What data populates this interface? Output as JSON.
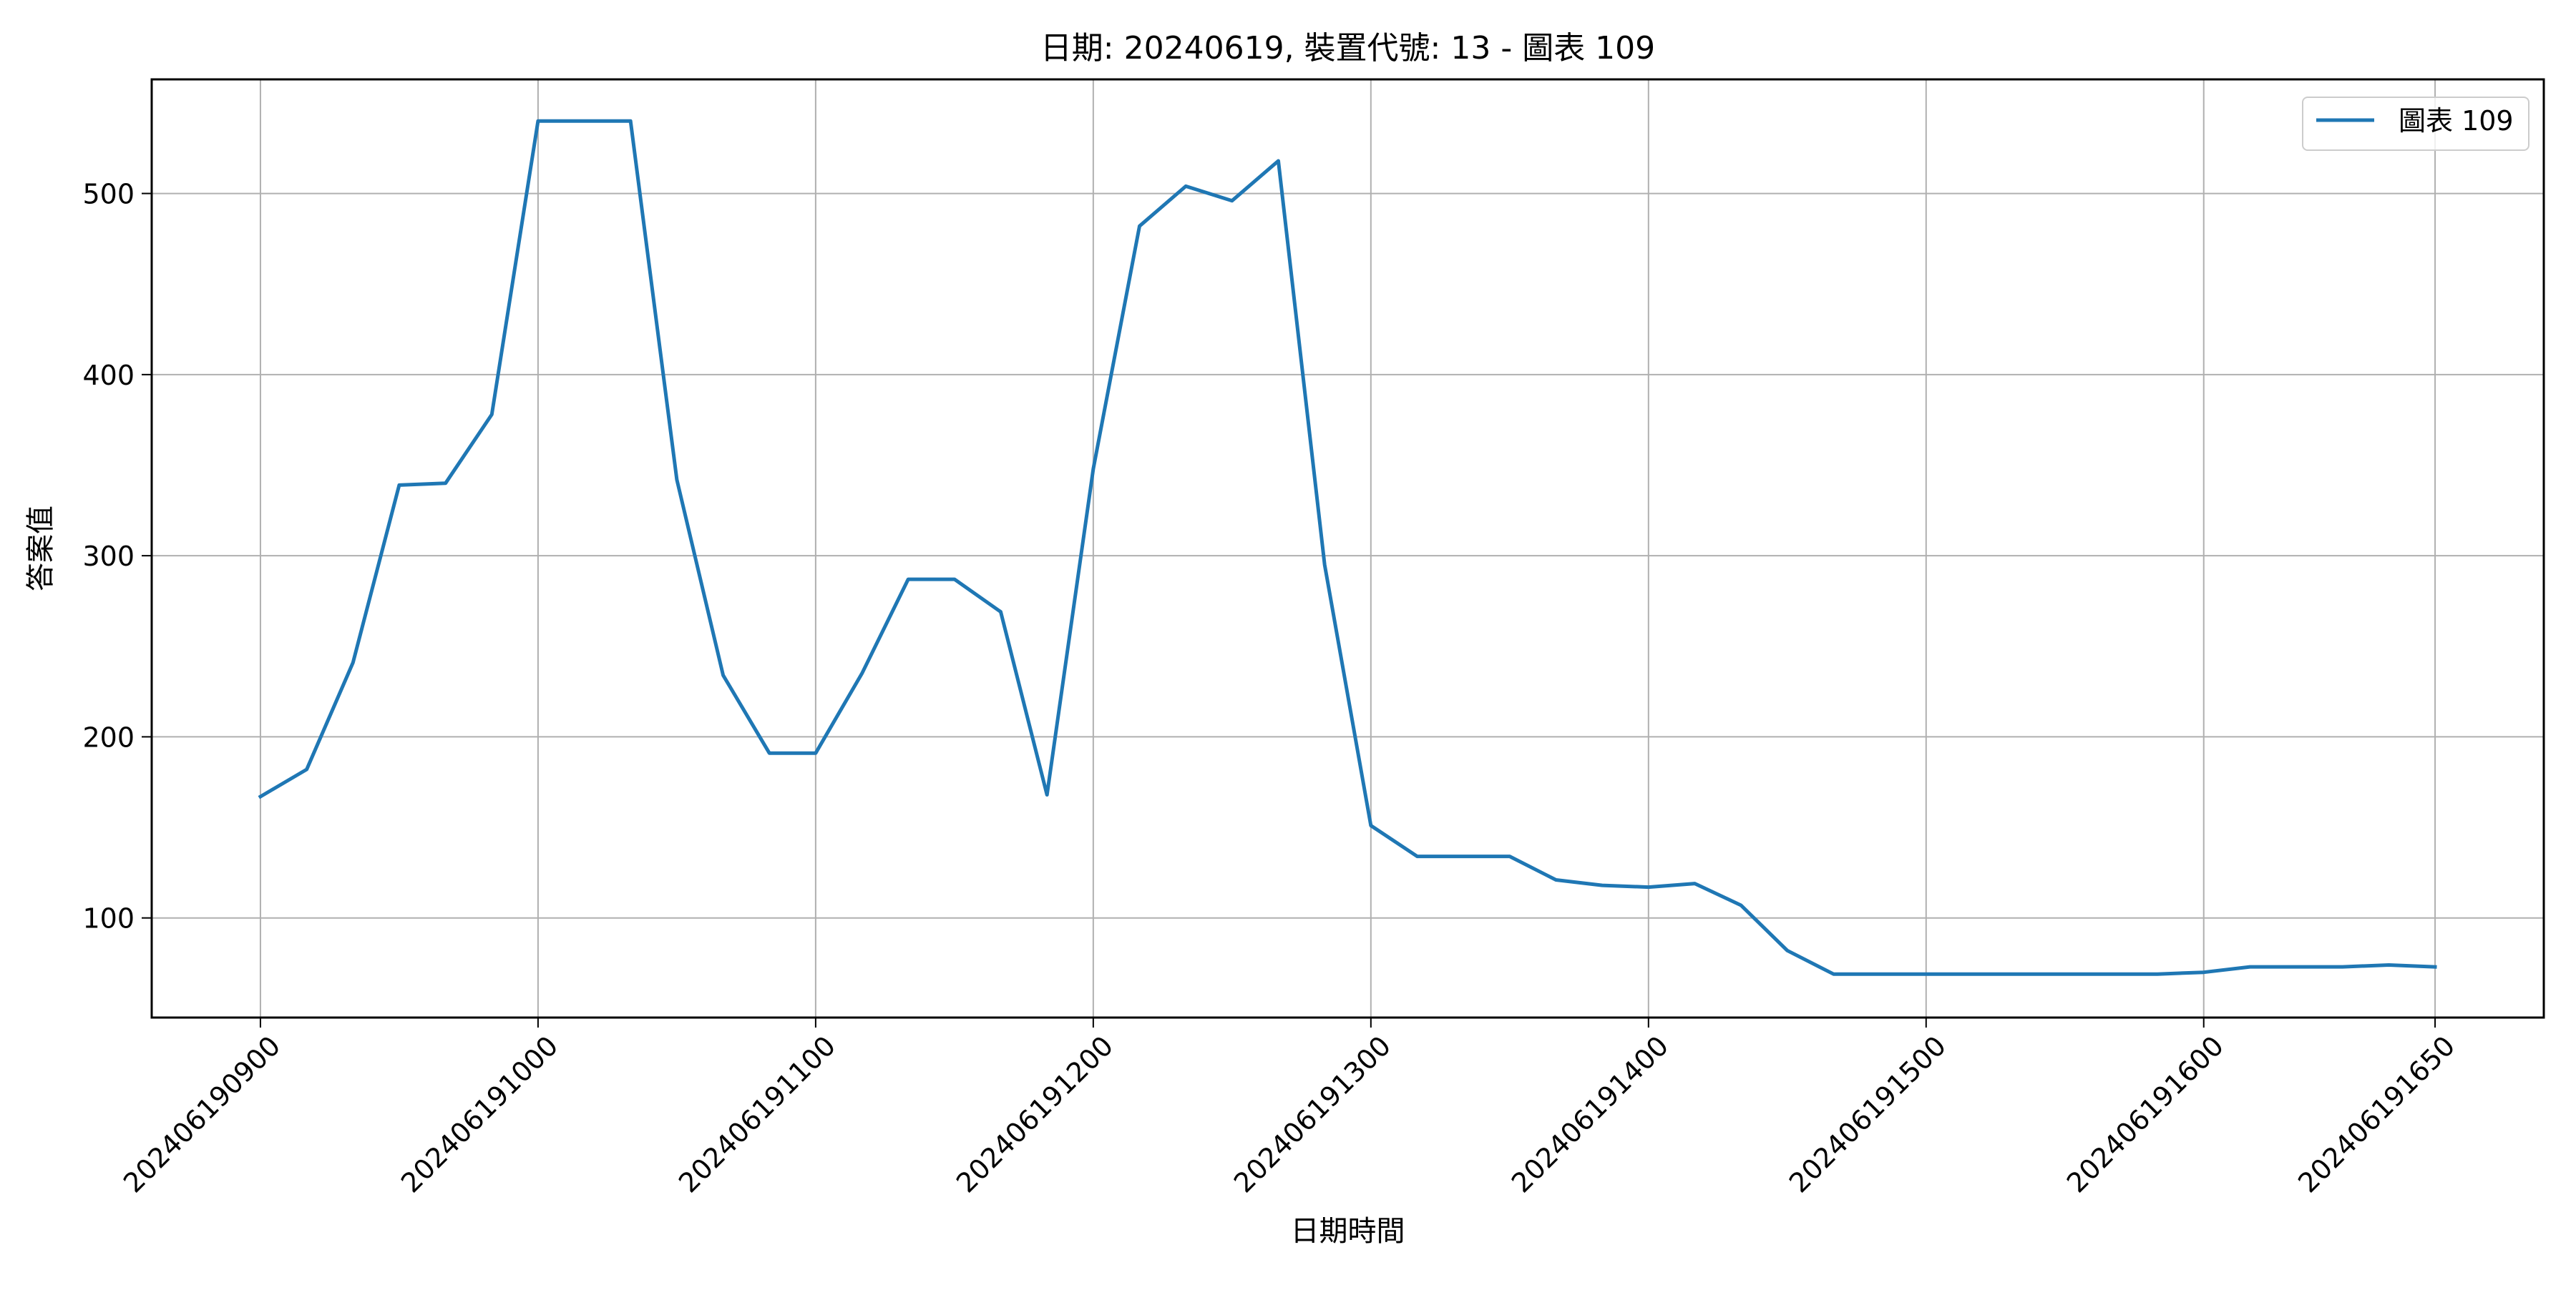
{
  "chart_data": {
    "type": "line",
    "title": "日期: 20240619, 裝置代號: 13 - 圖表 109",
    "xlabel": "日期時間",
    "ylabel": "答案值",
    "legend_position": "top-right",
    "grid": true,
    "line_color": "#1f77b4",
    "x_ticks": [
      {
        "minute": 0,
        "label": "202406190900"
      },
      {
        "minute": 60,
        "label": "202406191000"
      },
      {
        "minute": 120,
        "label": "202406191100"
      },
      {
        "minute": 180,
        "label": "202406191200"
      },
      {
        "minute": 240,
        "label": "202406191300"
      },
      {
        "minute": 300,
        "label": "202406191400"
      },
      {
        "minute": 360,
        "label": "202406191500"
      },
      {
        "minute": 420,
        "label": "202406191600"
      },
      {
        "minute": 470,
        "label": "202406191650"
      }
    ],
    "y_ticks": [
      100,
      200,
      300,
      400,
      500
    ],
    "xlim": [
      -23.5,
      493.5
    ],
    "ylim": [
      45,
      563
    ],
    "series": [
      {
        "name": "圖表 109",
        "x": [
          0,
          10,
          20,
          30,
          40,
          50,
          60,
          70,
          80,
          90,
          100,
          110,
          120,
          130,
          140,
          150,
          160,
          170,
          180,
          190,
          200,
          210,
          220,
          230,
          240,
          250,
          260,
          270,
          280,
          290,
          300,
          310,
          320,
          330,
          340,
          350,
          360,
          370,
          380,
          390,
          400,
          410,
          420,
          430,
          440,
          450,
          460,
          470
        ],
        "values": [
          167,
          182,
          241,
          339,
          340,
          378,
          540,
          540,
          540,
          342,
          234,
          191,
          191,
          235,
          287,
          287,
          269,
          168,
          348,
          482,
          504,
          496,
          518,
          295,
          151,
          134,
          134,
          134,
          121,
          118,
          117,
          119,
          107,
          82,
          69,
          69,
          69,
          69,
          69,
          69,
          69,
          69,
          70,
          73,
          73,
          73,
          74,
          73
        ]
      }
    ]
  }
}
